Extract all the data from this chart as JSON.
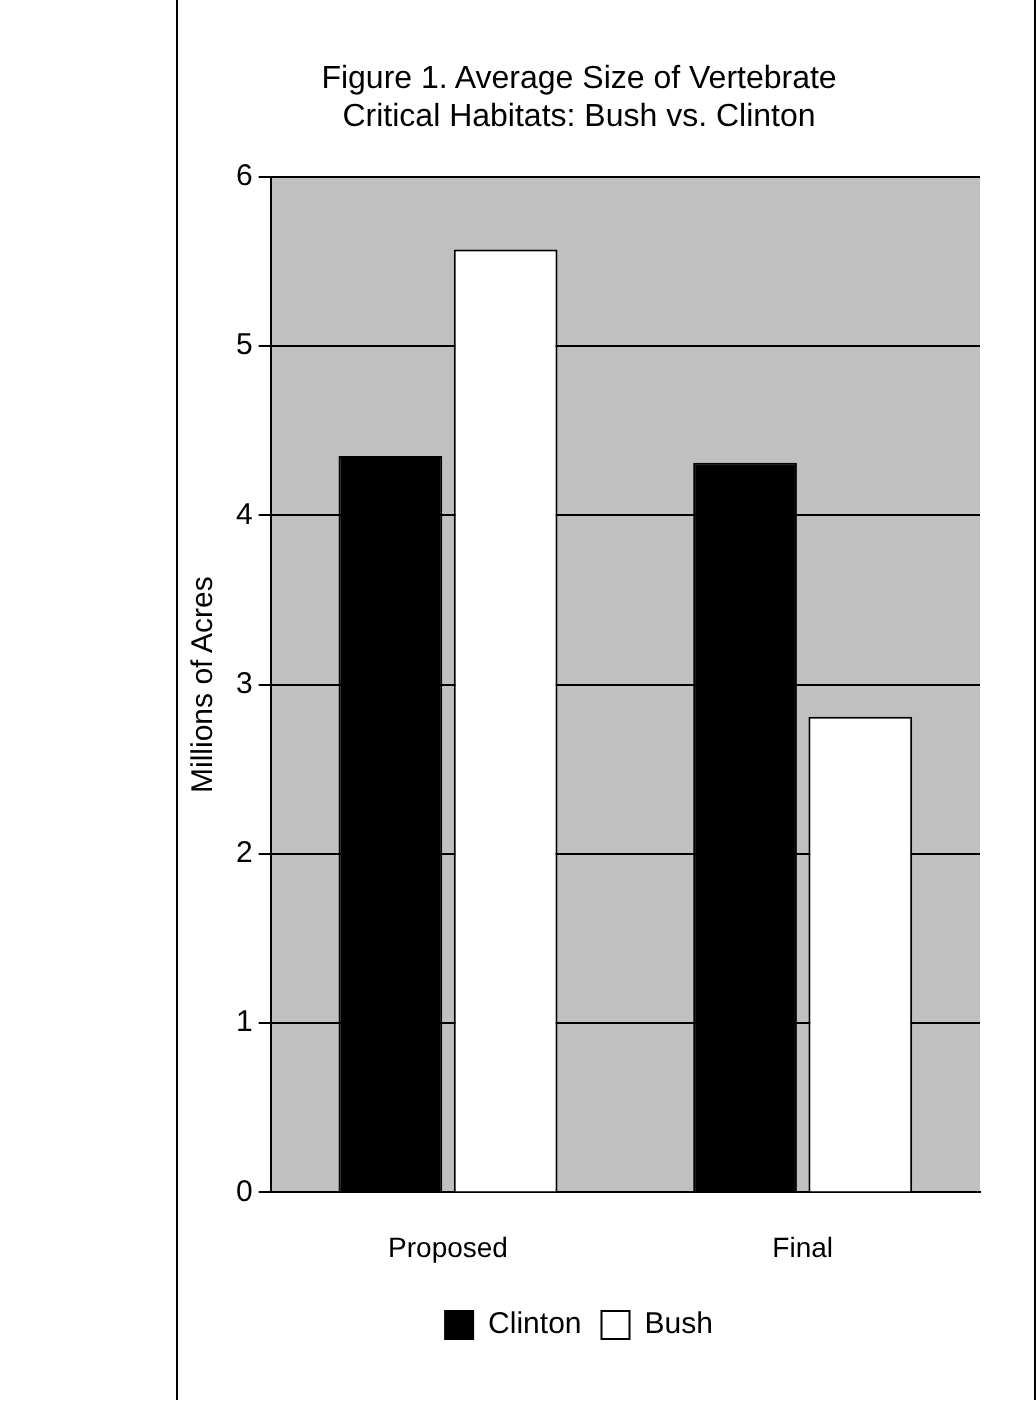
{
  "chart_data": {
    "type": "bar",
    "title": "Figure 1. Average Size of Vertebrate\nCritical Habitats: Bush vs. Clinton",
    "ylabel": "Millions of Acres",
    "categories": [
      "Proposed",
      "Final"
    ],
    "series": [
      {
        "name": "Clinton",
        "color": "#000000",
        "values": [
          4.35,
          4.31
        ]
      },
      {
        "name": "Bush",
        "color": "#ffffff",
        "values": [
          5.57,
          2.81
        ]
      }
    ],
    "ylim": [
      0,
      6
    ],
    "yticks": [
      0,
      1,
      2,
      3,
      4,
      5,
      6
    ],
    "grid": "y",
    "legend": "bottom"
  }
}
